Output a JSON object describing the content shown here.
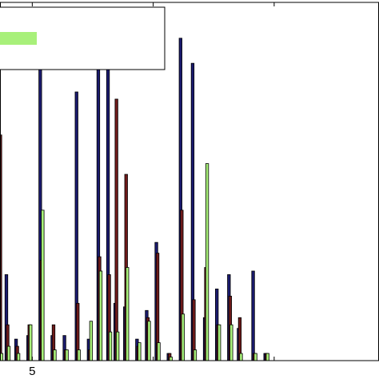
{
  "chart_data": {
    "type": "bar",
    "xlabel": "",
    "ylabel": "",
    "xlim": [
      3.6,
      19.4
    ],
    "ylim": [
      0,
      1.0
    ],
    "xticks": [
      5,
      10,
      15
    ],
    "xtick_labels": [
      "5",
      "",
      ""
    ],
    "legend": {
      "placement": "top-left",
      "swatches": [
        {
          "color": "#1a1a6e"
        },
        {
          "color": "#6e1a1a"
        },
        {
          "color": "#a8f07a"
        }
      ]
    },
    "series": [
      {
        "color": "#1a1a6e",
        "x": [
          3.63,
          3.93,
          4.33,
          4.83,
          5.33,
          5.83,
          6.33,
          6.83,
          7.33,
          7.73,
          8.13,
          8.43,
          8.83,
          9.33,
          9.73,
          10.13,
          10.63,
          11.13,
          11.63,
          12.13,
          12.63,
          13.13,
          13.53,
          14.13,
          14.63
        ],
        "values": [
          0.07,
          0.24,
          0.06,
          0.07,
          0.82,
          0.07,
          0.07,
          0.75,
          0.06,
          0.9,
          0.89,
          0.16,
          0.15,
          0.06,
          0.14,
          0.33,
          0.02,
          0.9,
          0.83,
          0.12,
          0.2,
          0.24,
          0.09,
          0.25,
          0.02
        ]
      },
      {
        "color": "#6e1a1a",
        "x": [
          3.68,
          3.98,
          4.38,
          4.88,
          5.38,
          5.88,
          6.38,
          6.88,
          7.38,
          7.78,
          8.18,
          8.48,
          8.88,
          9.38,
          9.78,
          10.18,
          10.68,
          11.18,
          11.68,
          12.18,
          12.68,
          13.18,
          13.58,
          14.18,
          14.68
        ],
        "values": [
          0.63,
          0.1,
          0.04,
          0.1,
          0.28,
          0.1,
          0.03,
          0.16,
          0.03,
          0.29,
          0.24,
          0.73,
          0.52,
          0.04,
          0.12,
          0.3,
          0.02,
          0.42,
          0.17,
          0.26,
          0.1,
          0.18,
          0.12,
          0.02,
          0.02
        ]
      },
      {
        "color": "#a8f07a",
        "x": [
          3.73,
          4.03,
          4.43,
          4.93,
          5.43,
          5.93,
          6.43,
          6.93,
          7.43,
          7.83,
          8.23,
          8.53,
          8.93,
          9.43,
          9.83,
          10.23,
          10.73,
          11.23,
          11.73,
          12.23,
          12.73,
          13.23,
          13.63,
          14.23,
          14.73
        ],
        "values": [
          0.02,
          0.04,
          0.02,
          0.1,
          0.42,
          0.03,
          0.03,
          0.03,
          0.11,
          0.25,
          0.08,
          0.08,
          0.26,
          0.05,
          0.11,
          0.05,
          0.01,
          0.13,
          0.03,
          0.55,
          0.1,
          0.1,
          0.02,
          0.02,
          0.02
        ]
      }
    ],
    "grid": false
  }
}
